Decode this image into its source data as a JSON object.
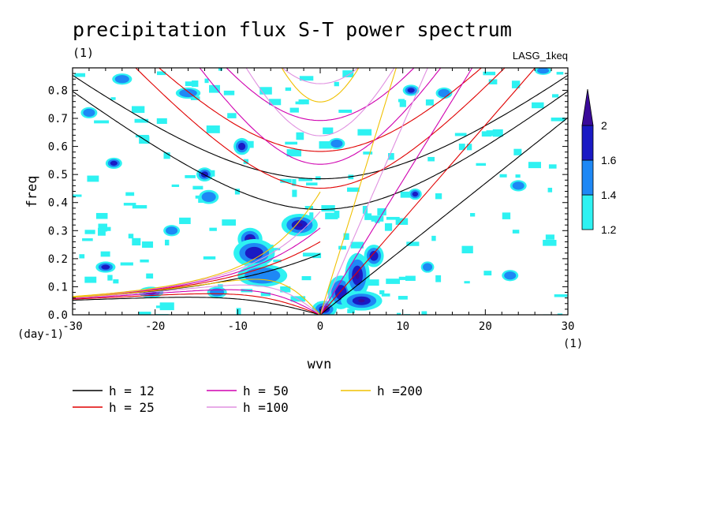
{
  "chart_data": {
    "type": "heatmap",
    "title": "precipitation flux S-T power spectrum",
    "subtitle": "(1)",
    "run_label": "LASG_1keq",
    "xlabel": "wvn",
    "ylabel": "freq",
    "x_unit": "(1)",
    "y_unit": "(day-1)",
    "xlim": [
      -30,
      30
    ],
    "ylim": [
      0,
      0.88
    ],
    "x_ticks": [
      -30,
      -20,
      -10,
      0,
      10,
      20,
      30
    ],
    "x_tick_labels": [
      "-30",
      "-20",
      "-10",
      "0",
      "10",
      "20",
      "30"
    ],
    "y_ticks": [
      0,
      0.1,
      0.2,
      0.3,
      0.4,
      0.5,
      0.6,
      0.7,
      0.8
    ],
    "y_tick_labels": [
      "0.0",
      "0.1",
      "0.2",
      "0.3",
      "0.4",
      "0.5",
      "0.6",
      "0.7",
      "0.8"
    ],
    "colorbar": {
      "levels": [
        1.2,
        1.4,
        1.6,
        2
      ],
      "labels": [
        "1.2",
        "1.4",
        "1.6",
        "2"
      ],
      "colors": [
        "#2ef2f2",
        "#1e88f5",
        "#1a1ac4",
        "#3a0a9a"
      ]
    },
    "signal_blobs": [
      {
        "x": 0.5,
        "y": 0.02,
        "rx": 1.5,
        "ry": 0.03,
        "level": 3
      },
      {
        "x": 2.5,
        "y": 0.08,
        "rx": 1.6,
        "ry": 0.06,
        "level": 2
      },
      {
        "x": 4.5,
        "y": 0.14,
        "rx": 1.5,
        "ry": 0.08,
        "level": 3
      },
      {
        "x": 6.5,
        "y": 0.21,
        "rx": 1.2,
        "ry": 0.04,
        "level": 2
      },
      {
        "x": 5,
        "y": 0.05,
        "rx": 2.5,
        "ry": 0.035,
        "level": 3
      },
      {
        "x": 11.5,
        "y": 0.43,
        "rx": 0.8,
        "ry": 0.02,
        "level": 2
      },
      {
        "x": 13,
        "y": 0.17,
        "rx": 0.8,
        "ry": 0.02,
        "level": 1
      },
      {
        "x": -2.5,
        "y": 0.32,
        "rx": 2.2,
        "ry": 0.04,
        "level": 3
      },
      {
        "x": -8.5,
        "y": 0.27,
        "rx": 1.5,
        "ry": 0.04,
        "level": 3
      },
      {
        "x": -8,
        "y": 0.22,
        "rx": 2.5,
        "ry": 0.05,
        "level": 2
      },
      {
        "x": -7,
        "y": 0.14,
        "rx": 3.0,
        "ry": 0.04,
        "level": 1
      },
      {
        "x": -9.5,
        "y": 0.6,
        "rx": 1.0,
        "ry": 0.03,
        "level": 2
      },
      {
        "x": -14,
        "y": 0.5,
        "rx": 1.0,
        "ry": 0.025,
        "level": 2
      },
      {
        "x": -13.5,
        "y": 0.42,
        "rx": 1.2,
        "ry": 0.025,
        "level": 1
      },
      {
        "x": -20.5,
        "y": 0.08,
        "rx": 1.5,
        "ry": 0.02,
        "level": 2
      },
      {
        "x": -25,
        "y": 0.54,
        "rx": 1.0,
        "ry": 0.02,
        "level": 2
      },
      {
        "x": -16,
        "y": 0.79,
        "rx": 1.5,
        "ry": 0.02,
        "level": 1
      },
      {
        "x": -24,
        "y": 0.84,
        "rx": 1.2,
        "ry": 0.02,
        "level": 1
      },
      {
        "x": 11,
        "y": 0.8,
        "rx": 1.0,
        "ry": 0.02,
        "level": 2
      },
      {
        "x": 15,
        "y": 0.79,
        "rx": 1.0,
        "ry": 0.02,
        "level": 1
      },
      {
        "x": 2,
        "y": 0.61,
        "rx": 1.0,
        "ry": 0.02,
        "level": 1
      },
      {
        "x": 24,
        "y": 0.46,
        "rx": 1.0,
        "ry": 0.02,
        "level": 1
      },
      {
        "x": -12.5,
        "y": 0.08,
        "rx": 1.2,
        "ry": 0.02,
        "level": 1
      },
      {
        "x": -26,
        "y": 0.17,
        "rx": 1.2,
        "ry": 0.02,
        "level": 2
      },
      {
        "x": 23,
        "y": 0.14,
        "rx": 1.0,
        "ry": 0.02,
        "level": 1
      },
      {
        "x": -18,
        "y": 0.3,
        "rx": 1.0,
        "ry": 0.02,
        "level": 1
      },
      {
        "x": 27,
        "y": 0.87,
        "rx": 1.0,
        "ry": 0.015,
        "level": 1
      },
      {
        "x": -28,
        "y": 0.72,
        "rx": 1.0,
        "ry": 0.02,
        "level": 1
      }
    ],
    "dispersion_curves": [
      {
        "h": 12,
        "name": "h = 12",
        "color": "#000000"
      },
      {
        "h": 25,
        "name": "h = 25",
        "color": "#e00000"
      },
      {
        "h": 50,
        "name": "h = 50",
        "color": "#d000b0"
      },
      {
        "h": 100,
        "name": "h =100",
        "color": "#e090e0"
      },
      {
        "h": 200,
        "name": "h =200",
        "color": "#f0c000"
      }
    ]
  }
}
